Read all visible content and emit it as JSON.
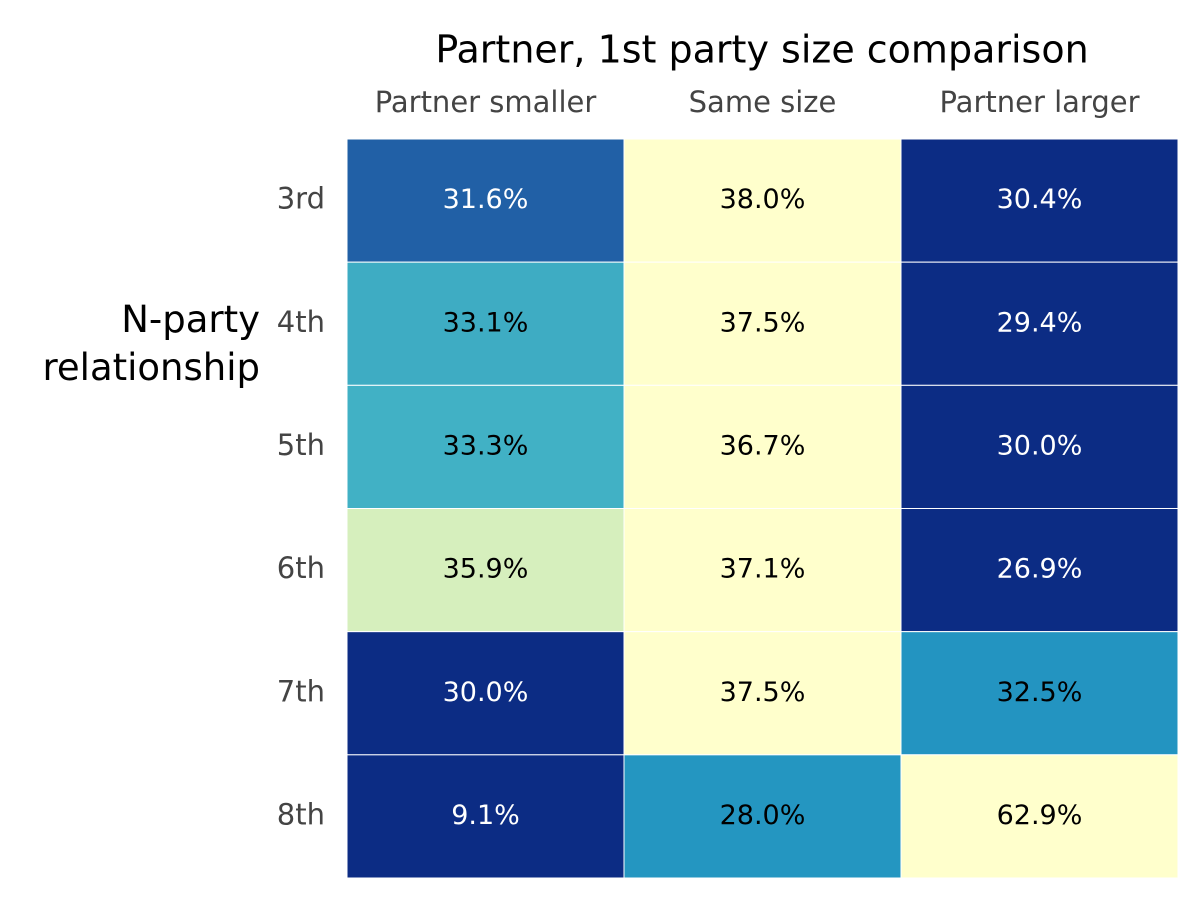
{
  "chart_data": {
    "type": "heatmap",
    "title": "Partner, 1st party size comparison",
    "y_label": "N-party relationship",
    "x": [
      "Partner smaller",
      "Same size",
      "Partner larger"
    ],
    "y": [
      "3rd",
      "4th",
      "5th",
      "6th",
      "7th",
      "8th"
    ],
    "values": [
      [
        31.6,
        38.0,
        30.4
      ],
      [
        33.1,
        37.5,
        29.4
      ],
      [
        33.3,
        36.7,
        30.0
      ],
      [
        35.9,
        37.1,
        26.9
      ],
      [
        30.0,
        37.5,
        32.5
      ],
      [
        9.1,
        28.0,
        62.9
      ]
    ],
    "value_labels": [
      [
        "31.6%",
        "38.0%",
        "30.4%"
      ],
      [
        "33.1%",
        "37.5%",
        "29.4%"
      ],
      [
        "33.3%",
        "36.7%",
        "30.0%"
      ],
      [
        "35.9%",
        "37.1%",
        "26.9%"
      ],
      [
        "30.0%",
        "37.5%",
        "32.5%"
      ],
      [
        "9.1%",
        "28.0%",
        "62.9%"
      ]
    ],
    "colors": [
      [
        "#2160a6",
        "#ffffcc",
        "#0c2c84"
      ],
      [
        "#3eacc3",
        "#ffffcc",
        "#0c2c84"
      ],
      [
        "#41b1c5",
        "#ffffcc",
        "#0c2c84"
      ],
      [
        "#d6efbd",
        "#ffffcc",
        "#0c2c84"
      ],
      [
        "#0c2c84",
        "#ffffcc",
        "#2394c1"
      ],
      [
        "#0c2c84",
        "#2496c1",
        "#ffffcc"
      ]
    ]
  }
}
